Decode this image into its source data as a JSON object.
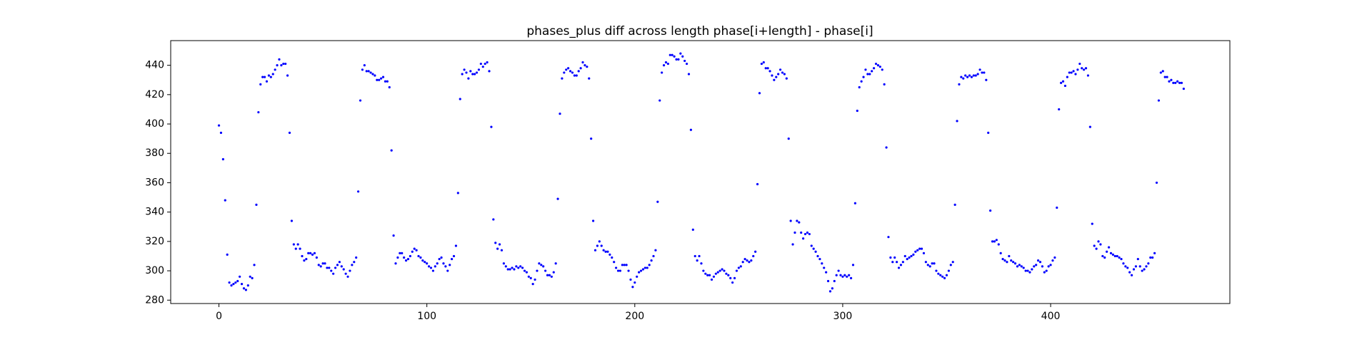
{
  "chart_data": {
    "type": "scatter",
    "title": "phases_plus diff across length phase[i+length] - phase[i]",
    "color": "#0000ff",
    "xlim": [
      -23.2,
      486.2
    ],
    "xticks": [
      0,
      100,
      200,
      300,
      400
    ],
    "ylim": [
      277.7,
      456.8
    ],
    "yticks": [
      280,
      300,
      320,
      340,
      360,
      380,
      400,
      420,
      440
    ],
    "values": [
      399,
      394,
      376,
      348,
      311,
      292,
      290,
      291,
      292,
      293,
      296,
      291,
      288,
      287,
      290,
      296,
      295,
      304,
      345,
      408,
      427,
      432,
      432,
      429,
      433,
      432,
      434,
      437,
      440,
      444,
      440,
      441,
      441,
      433,
      394,
      334,
      318,
      315,
      318,
      315,
      310,
      307,
      308,
      312,
      312,
      311,
      312,
      309,
      304,
      303,
      305,
      305,
      302,
      302,
      300,
      298,
      302,
      304,
      306,
      303,
      301,
      298,
      296,
      300,
      304,
      306,
      309,
      354,
      416,
      437,
      440,
      436,
      436,
      435,
      434,
      433,
      430,
      430,
      431,
      432,
      429,
      429,
      425,
      382,
      324,
      305,
      309,
      312,
      312,
      309,
      307,
      308,
      310,
      313,
      315,
      314,
      310,
      309,
      307,
      306,
      305,
      303,
      302,
      300,
      303,
      305,
      308,
      309,
      305,
      303,
      300,
      304,
      308,
      310,
      317,
      353,
      417,
      434,
      437,
      435,
      431,
      436,
      434,
      434,
      435,
      437,
      441,
      439,
      441,
      442,
      436,
      398,
      335,
      319,
      315,
      318,
      314,
      305,
      303,
      301,
      301,
      302,
      301,
      303,
      302,
      303,
      302,
      300,
      299,
      296,
      295,
      291,
      294,
      300,
      305,
      304,
      303,
      300,
      297,
      297,
      296,
      299,
      305,
      349,
      407,
      431,
      435,
      437,
      438,
      436,
      435,
      433,
      433,
      436,
      438,
      442,
      440,
      439,
      431,
      390,
      334,
      314,
      317,
      320,
      317,
      314,
      313,
      313,
      311,
      309,
      306,
      302,
      300,
      300,
      304,
      304,
      304,
      300,
      294,
      289,
      292,
      296,
      299,
      300,
      301,
      302,
      302,
      304,
      307,
      310,
      314,
      347,
      416,
      435,
      440,
      442,
      441,
      447,
      447,
      446,
      444,
      444,
      448,
      446,
      443,
      441,
      434,
      396,
      328,
      310,
      307,
      310,
      305,
      300,
      298,
      297,
      297,
      294,
      296,
      298,
      299,
      300,
      301,
      300,
      298,
      297,
      295,
      292,
      295,
      300,
      302,
      303,
      306,
      308,
      307,
      306,
      307,
      310,
      313,
      359,
      421,
      441,
      442,
      438,
      438,
      436,
      433,
      430,
      432,
      434,
      437,
      435,
      434,
      431,
      390,
      334,
      318,
      326,
      334,
      333,
      326,
      322,
      325,
      326,
      325,
      317,
      315,
      313,
      310,
      308,
      305,
      302,
      299,
      293,
      286,
      288,
      293,
      297,
      300,
      297,
      296,
      297,
      296,
      297,
      295,
      304,
      346,
      409,
      425,
      429,
      432,
      437,
      434,
      434,
      436,
      438,
      441,
      440,
      439,
      437,
      427,
      384,
      323,
      309,
      306,
      309,
      306,
      302,
      304,
      306,
      310,
      308,
      309,
      310,
      311,
      313,
      314,
      315,
      315,
      312,
      306,
      304,
      303,
      305,
      305,
      300,
      298,
      297,
      296,
      295,
      297,
      300,
      304,
      306,
      345,
      402,
      427,
      432,
      431,
      433,
      432,
      433,
      432,
      433,
      433,
      434,
      437,
      435,
      435,
      430,
      394,
      341,
      320,
      320,
      321,
      318,
      312,
      308,
      307,
      306,
      310,
      307,
      306,
      305,
      303,
      304,
      303,
      302,
      300,
      300,
      299,
      301,
      303,
      304,
      307,
      306,
      303,
      299,
      300,
      303,
      304,
      307,
      309,
      343,
      410,
      428,
      429,
      426,
      432,
      435,
      435,
      436,
      434,
      437,
      441,
      438,
      437,
      438,
      433,
      398,
      332,
      317,
      315,
      320,
      318,
      310,
      309,
      313,
      316,
      312,
      311,
      310,
      310,
      309,
      308,
      305,
      303,
      302,
      299,
      297,
      301,
      303,
      308,
      303,
      300,
      301,
      303,
      305,
      309,
      309,
      312,
      360,
      416,
      435,
      436,
      432,
      432,
      429,
      430,
      428,
      428,
      429,
      428,
      428,
      424
    ]
  }
}
